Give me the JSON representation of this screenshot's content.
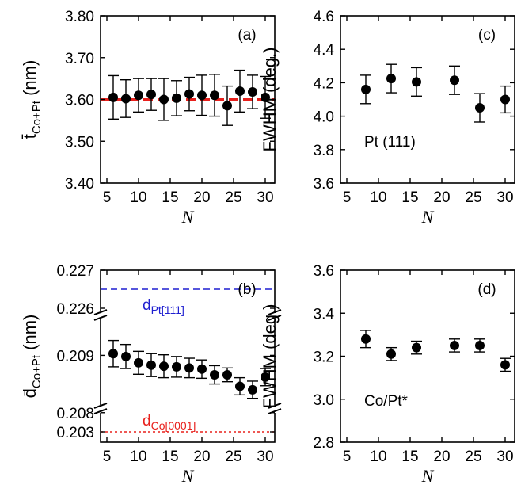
{
  "chart_data": [
    {
      "type": "scatter",
      "panel_label": "(a)",
      "ylabel": "t̄",
      "ylabel_sub": "Co+Pt",
      "ylabel_unit": " (nm)",
      "xlabel": "N",
      "xlim": [
        4,
        31.5
      ],
      "ylim": [
        3.4,
        3.8
      ],
      "xticks": [
        5,
        10,
        15,
        20,
        25,
        30
      ],
      "yticks": [
        "3.40",
        "3.50",
        "3.60",
        "3.70",
        "3.80"
      ],
      "hline": {
        "y": 3.6,
        "color": "#e8201c",
        "style": "dashed"
      },
      "x": [
        6,
        8,
        10,
        12,
        14,
        16,
        18,
        20,
        22,
        24,
        26,
        28,
        30
      ],
      "y": [
        3.605,
        3.602,
        3.61,
        3.612,
        3.6,
        3.603,
        3.613,
        3.61,
        3.61,
        3.585,
        3.62,
        3.618,
        3.605
      ],
      "err": [
        0.052,
        0.045,
        0.04,
        0.038,
        0.05,
        0.042,
        0.04,
        0.048,
        0.05,
        0.047,
        0.05,
        0.04,
        0.05
      ]
    },
    {
      "type": "scatter",
      "panel_label": "(c)",
      "ylabel": "FWHM (deg.)",
      "xlabel": "N",
      "annotation": "Pt (111)",
      "xlim": [
        4,
        31.5
      ],
      "ylim": [
        3.6,
        4.6
      ],
      "xticks": [
        5,
        10,
        15,
        20,
        25,
        30
      ],
      "yticks": [
        "3.6",
        "3.8",
        "4.0",
        "4.2",
        "4.4",
        "4.6"
      ],
      "x": [
        8,
        12,
        16,
        22,
        26,
        30
      ],
      "y": [
        4.16,
        4.225,
        4.205,
        4.215,
        4.05,
        4.1
      ],
      "err": [
        0.085,
        0.085,
        0.085,
        0.085,
        0.085,
        0.08
      ]
    },
    {
      "type": "scatter",
      "panel_label": "(b)",
      "ylabel": "d̄",
      "ylabel_sub": "Co+Pt",
      "ylabel_unit": " (nm)",
      "xlabel": "N",
      "axis_break": true,
      "xlim": [
        4,
        31.5
      ],
      "ylim": [
        0.2079,
        0.2096
      ],
      "xticks": [
        5,
        10,
        15,
        20,
        25,
        30
      ],
      "ytick_labels": [
        "0.227",
        "0.226",
        "0.209",
        "0.208",
        "0.203"
      ],
      "ytick_values": [
        0.227,
        0.226,
        0.209,
        0.208,
        0.203
      ],
      "ref_lines": [
        {
          "label_main": "d",
          "label_sub": "Pt[111]",
          "value": 0.2265,
          "color": "#1f1fd0",
          "style": "dashed"
        },
        {
          "label_main": "d",
          "label_sub": "Co[0001]",
          "value": 0.203,
          "color": "#e8201c",
          "style": "dotted"
        }
      ],
      "x": [
        6,
        8,
        10,
        12,
        14,
        16,
        18,
        20,
        22,
        24,
        26,
        28,
        30
      ],
      "y": [
        0.20903,
        0.20898,
        0.20887,
        0.20883,
        0.20881,
        0.2088,
        0.20878,
        0.20876,
        0.20866,
        0.20866,
        0.20846,
        0.2084,
        0.20862
      ],
      "err": [
        0.00023,
        0.00021,
        0.0002,
        0.0002,
        0.0002,
        0.00018,
        0.00017,
        0.00016,
        0.00016,
        0.00012,
        0.00015,
        0.00015,
        0.00015
      ]
    },
    {
      "type": "scatter",
      "panel_label": "(d)",
      "ylabel": "FWHM (deg.)",
      "xlabel": "N",
      "annotation": "Co/Pt*",
      "xlim": [
        4,
        31.5
      ],
      "ylim": [
        2.8,
        3.6
      ],
      "xticks": [
        5,
        10,
        15,
        20,
        25,
        30
      ],
      "yticks": [
        "2.8",
        "3.0",
        "3.2",
        "3.4",
        "3.6"
      ],
      "x": [
        8,
        12,
        16,
        22,
        26,
        30
      ],
      "y": [
        3.28,
        3.21,
        3.24,
        3.25,
        3.25,
        3.16
      ],
      "err": [
        0.04,
        0.03,
        0.03,
        0.03,
        0.03,
        0.03
      ]
    }
  ]
}
